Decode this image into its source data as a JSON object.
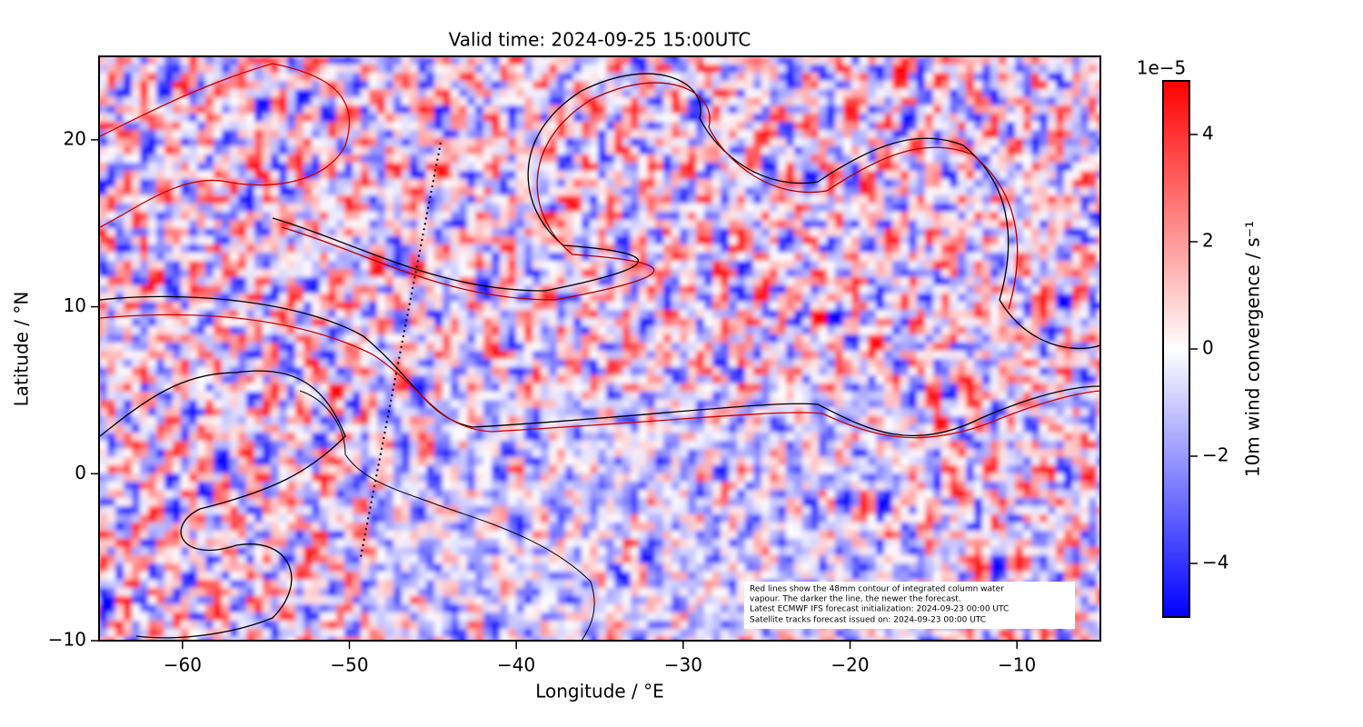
{
  "chart_data": {
    "type": "heatmap",
    "title": "Valid time: 2024-09-25 15:00UTC",
    "x_label": "Longitude / °E",
    "y_label": "Latitude / °N",
    "xlim": [
      -65,
      -5
    ],
    "ylim": [
      -10,
      25
    ],
    "xticks": [
      {
        "value": -60,
        "label": "−60"
      },
      {
        "value": -50,
        "label": "−50"
      },
      {
        "value": -40,
        "label": "−40"
      },
      {
        "value": -30,
        "label": "−30"
      },
      {
        "value": -20,
        "label": "−20"
      },
      {
        "value": -10,
        "label": "−10"
      }
    ],
    "yticks": [
      {
        "value": -10,
        "label": "−10"
      },
      0,
      10,
      20
    ],
    "colorbar": {
      "label": "10m wind convergence / s⁻¹",
      "offset": "1e−5",
      "clim": [
        -5,
        5
      ],
      "ticks": [
        {
          "value": -4,
          "label": "−4"
        },
        {
          "value": -2,
          "label": "−2"
        },
        0,
        2,
        4
      ],
      "colors": [
        "#0000ff",
        "#ffffff",
        "#ff0000"
      ]
    },
    "annotation": [
      "Red lines show the 48mm contour of integrated column water",
      "vapour. The darker the line, the newer the forecast.",
      "Latest ECMWF IFS forecast initialization: 2024-09-23 00:00 UTC",
      "Satellite tracks forecast issued on: 2024-09-23 00:00 UTC"
    ]
  }
}
